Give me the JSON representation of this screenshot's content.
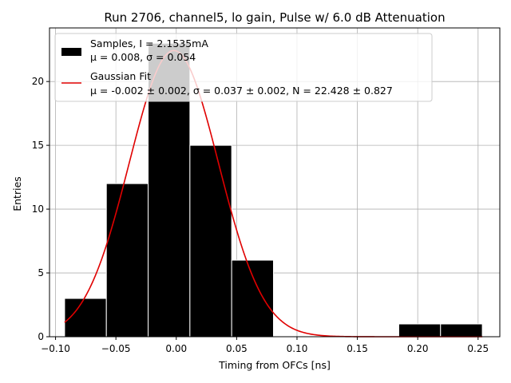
{
  "chart_data": {
    "type": "bar",
    "title": "Run 2706, channel5, lo gain, Pulse w/ 6.0 dB Attenuation",
    "xlabel": "Timing from OFCs [ns]",
    "ylabel": "Entries",
    "xlim": [
      -0.105,
      0.268
    ],
    "ylim": [
      0,
      24.2
    ],
    "grid": true,
    "legend_position": "top-left",
    "x_ticks": [
      -0.1,
      -0.05,
      0.0,
      0.05,
      0.1,
      0.15,
      0.2,
      0.25
    ],
    "x_tick_labels": [
      "−0.10",
      "−0.05",
      "0.00",
      "0.05",
      "0.10",
      "0.15",
      "0.20",
      "0.25"
    ],
    "y_ticks": [
      0,
      5,
      10,
      15,
      20
    ],
    "y_tick_labels": [
      "0",
      "5",
      "10",
      "15",
      "20"
    ],
    "histogram": {
      "bin_edges": [
        -0.0925,
        -0.0579,
        -0.0233,
        0.0113,
        0.0459,
        0.0805,
        0.1151,
        0.1497,
        0.1843,
        0.2189,
        0.2535
      ],
      "counts": [
        3,
        12,
        23,
        15,
        6,
        0,
        0,
        0,
        1,
        1
      ],
      "color": "#000000",
      "edge_color": "#ffffff"
    },
    "fit": {
      "mu": -0.002,
      "sigma": 0.037,
      "N": 22.428,
      "x_range": [
        -0.0925,
        0.2535
      ],
      "color": "#e00000"
    },
    "legend": [
      {
        "line1": "Samples, I = 2.1535mA",
        "line2": "μ = 0.008, σ = 0.054"
      },
      {
        "line1": "Gaussian Fit",
        "line2": "μ = -0.002 ± 0.002, σ = 0.037 ± 0.002, N = 22.428 ± 0.827"
      }
    ]
  }
}
